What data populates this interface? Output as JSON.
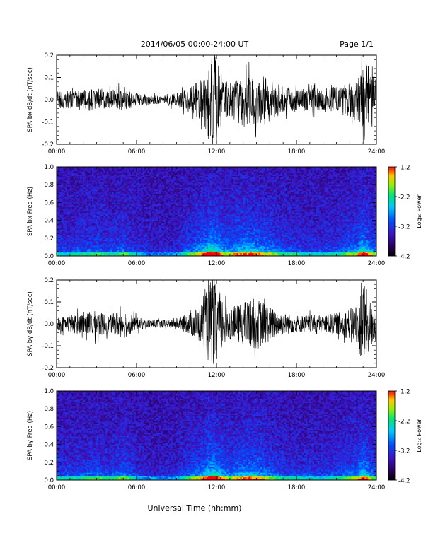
{
  "header": {
    "title": "2014/06/05  00:00-24:00 UT",
    "page": "Page 1/1"
  },
  "chart_data": [
    {
      "type": "line",
      "ylabel": "SPA bx dB/dt (nT/sec)",
      "xlim": [
        0,
        24
      ],
      "ylim": [
        -0.2,
        0.2
      ],
      "x_ticks": [
        "00:00",
        "06:00",
        "12:00",
        "18:00",
        "24:00"
      ],
      "y_ticks": [
        "-0.2",
        "-0.1",
        "0.0",
        "0.1",
        "0.2"
      ],
      "envelope": {
        "hours": [
          0,
          1,
          2,
          3,
          4,
          5,
          6,
          7,
          8,
          9,
          10,
          11,
          11.5,
          12,
          12.5,
          13,
          14,
          15,
          16,
          17,
          18,
          19,
          20,
          21,
          22,
          22.5,
          23,
          23.5,
          24
        ],
        "amplitude": [
          0.04,
          0.04,
          0.05,
          0.05,
          0.04,
          0.05,
          0.03,
          0.02,
          0.02,
          0.03,
          0.06,
          0.1,
          0.2,
          0.2,
          0.09,
          0.08,
          0.12,
          0.11,
          0.1,
          0.06,
          0.05,
          0.05,
          0.05,
          0.06,
          0.08,
          0.09,
          0.2,
          0.14,
          0.1
        ]
      }
    },
    {
      "type": "heatmap",
      "ylabel": "SPA bx Freq (Hz)",
      "xlim": [
        0,
        24
      ],
      "ylim": [
        0,
        1.0
      ],
      "x_ticks": [
        "00:00",
        "06:00",
        "12:00",
        "18:00",
        "24:00"
      ],
      "y_ticks": [
        "0.0",
        "0.2",
        "0.4",
        "0.6",
        "0.8",
        "1.0"
      ],
      "colorbar": {
        "label": "Log₁₀ Power",
        "range": [
          -4.2,
          -1.2
        ],
        "ticks": [
          "-1.2",
          "-2.2",
          "-3.2",
          "-4.2"
        ]
      },
      "activity": {
        "hours": [
          0,
          1,
          2,
          3,
          4,
          5,
          6,
          7,
          8,
          9,
          10,
          11,
          11.5,
          12,
          12.5,
          13,
          14,
          15,
          16,
          17,
          18,
          19,
          20,
          21,
          22,
          22.5,
          23,
          23.5,
          24
        ],
        "level": [
          0.3,
          0.3,
          0.35,
          0.4,
          0.35,
          0.45,
          0.25,
          0.15,
          0.15,
          0.2,
          0.45,
          0.7,
          0.95,
          0.9,
          0.6,
          0.55,
          0.75,
          0.7,
          0.55,
          0.4,
          0.35,
          0.3,
          0.3,
          0.35,
          0.5,
          0.55,
          0.9,
          0.6,
          0.45
        ]
      }
    },
    {
      "type": "line",
      "ylabel": "SPA by dB/dt (nT/sec)",
      "xlim": [
        0,
        24
      ],
      "ylim": [
        -0.2,
        0.2
      ],
      "x_ticks": [
        "00:00",
        "06:00",
        "12:00",
        "18:00",
        "24:00"
      ],
      "y_ticks": [
        "-0.2",
        "-0.1",
        "0.0",
        "0.1",
        "0.2"
      ],
      "envelope": {
        "hours": [
          0,
          1,
          2,
          3,
          4,
          5,
          6,
          7,
          8,
          9,
          10,
          11,
          11.5,
          12,
          12.5,
          13,
          14,
          15,
          16,
          17,
          18,
          19,
          20,
          21,
          22,
          22.5,
          23,
          23.5,
          24
        ],
        "amplitude": [
          0.03,
          0.04,
          0.05,
          0.06,
          0.04,
          0.07,
          0.03,
          0.02,
          0.02,
          0.02,
          0.05,
          0.1,
          0.2,
          0.18,
          0.12,
          0.07,
          0.1,
          0.12,
          0.08,
          0.05,
          0.04,
          0.04,
          0.04,
          0.05,
          0.07,
          0.09,
          0.2,
          0.12,
          0.08
        ]
      }
    },
    {
      "type": "heatmap",
      "ylabel": "SPA by Freq (Hz)",
      "xlim": [
        0,
        24
      ],
      "ylim": [
        0,
        1.0
      ],
      "x_ticks": [
        "00:00",
        "06:00",
        "12:00",
        "18:00",
        "24:00"
      ],
      "y_ticks": [
        "0.0",
        "0.2",
        "0.4",
        "0.6",
        "0.8",
        "1.0"
      ],
      "colorbar": {
        "label": "Log₁₀ Power",
        "range": [
          -4.2,
          -1.2
        ],
        "ticks": [
          "-1.2",
          "-2.2",
          "-3.2",
          "-4.2"
        ]
      },
      "activity": {
        "hours": [
          0,
          1,
          2,
          3,
          4,
          5,
          6,
          7,
          8,
          9,
          10,
          11,
          11.5,
          12,
          12.5,
          13,
          14,
          15,
          16,
          17,
          18,
          19,
          20,
          21,
          22,
          22.5,
          23,
          23.5,
          24
        ],
        "level": [
          0.3,
          0.35,
          0.35,
          0.45,
          0.35,
          0.5,
          0.25,
          0.15,
          0.15,
          0.2,
          0.45,
          0.65,
          0.9,
          0.85,
          0.6,
          0.5,
          0.7,
          0.7,
          0.5,
          0.35,
          0.3,
          0.3,
          0.3,
          0.35,
          0.5,
          0.5,
          0.85,
          0.55,
          0.4
        ]
      }
    }
  ],
  "footer": {
    "xlabel": "Universal Time (hh:mm)"
  }
}
